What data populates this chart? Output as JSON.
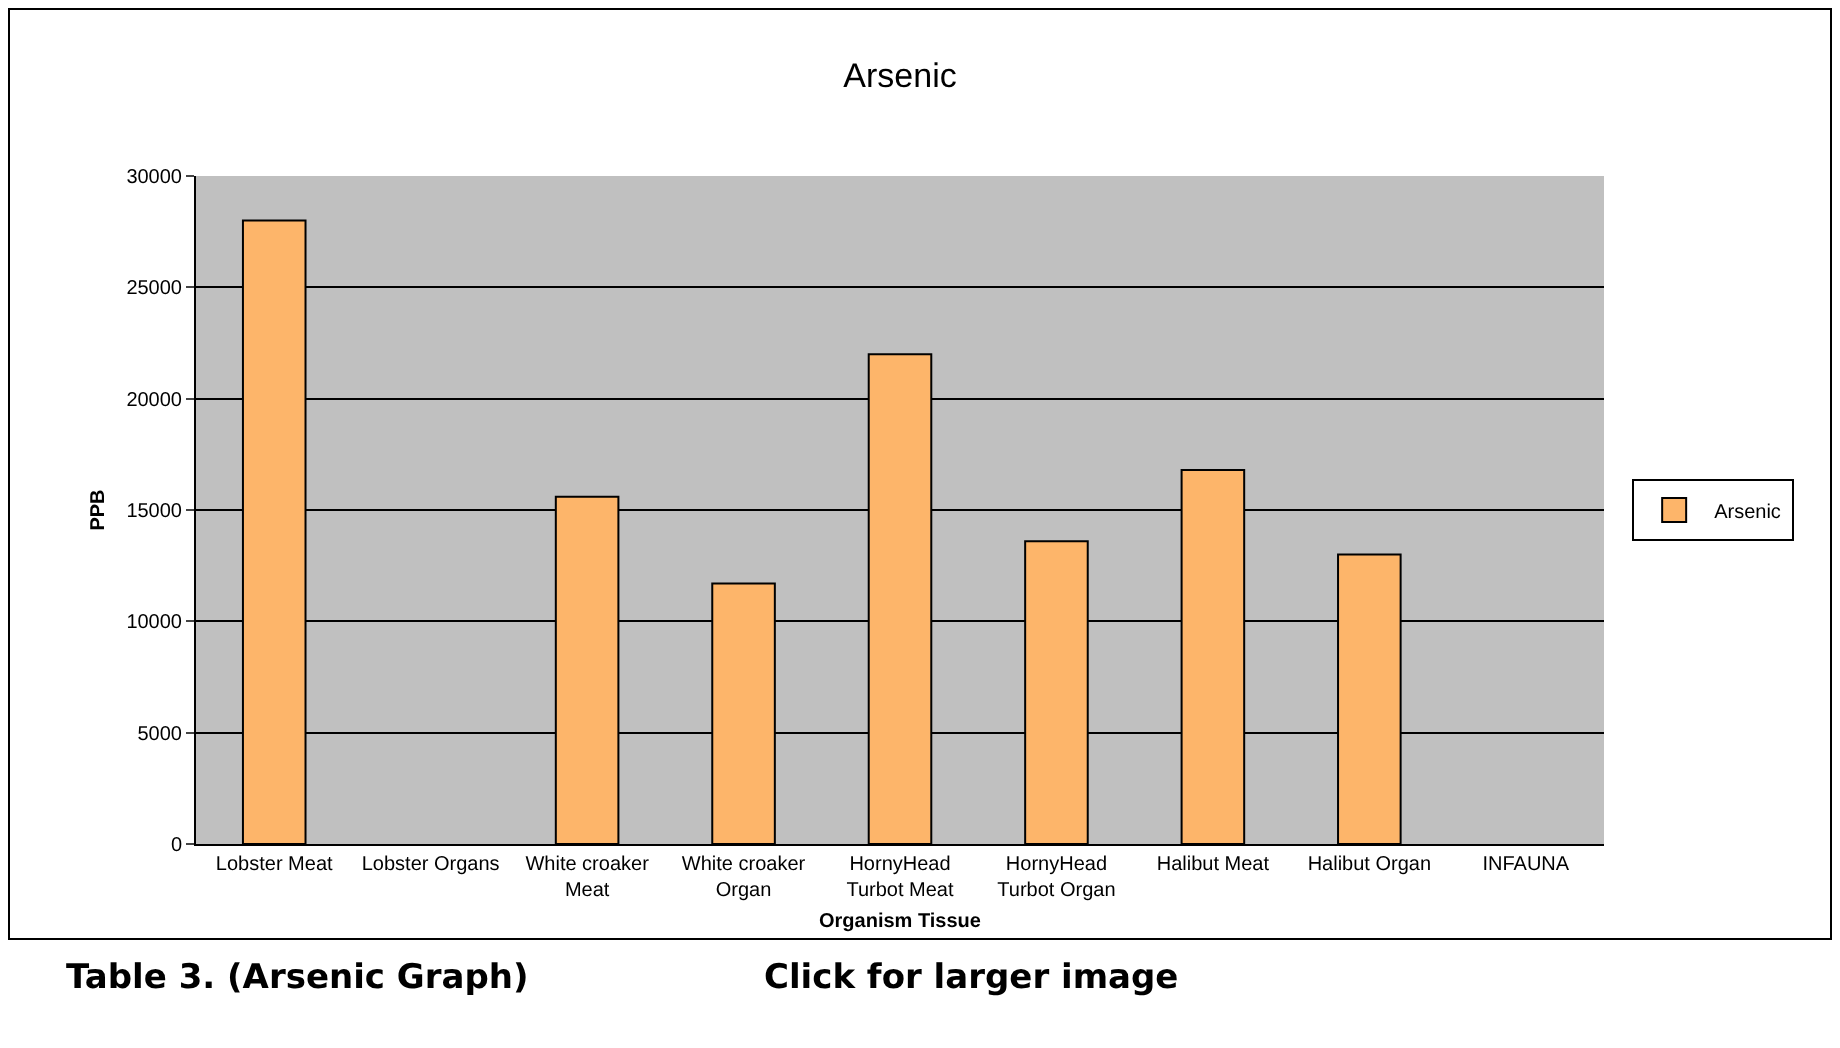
{
  "chart_data": {
    "type": "bar",
    "title": "Arsenic",
    "xlabel": "Organism Tissue",
    "ylabel": "PPB",
    "categories": [
      "Lobster Meat",
      "Lobster Organs",
      "White croaker Meat",
      "White croaker Organ",
      "HornyHead Turbot Meat",
      "HornyHead Turbot Organ",
      "Halibut Meat",
      "Halibut Organ",
      "INFAUNA"
    ],
    "series": [
      {
        "name": "Arsenic",
        "color": "#fdb56a",
        "values": [
          28000,
          null,
          15600,
          11700,
          22000,
          13600,
          16800,
          13000,
          null
        ]
      }
    ],
    "ylim": [
      0,
      30000
    ],
    "yticks": [
      0,
      5000,
      10000,
      15000,
      20000,
      25000,
      30000
    ],
    "grid": "y",
    "legend": "right",
    "annotations": [
      "Table 3. (Arsenic Graph)",
      "Click for larger image"
    ]
  }
}
